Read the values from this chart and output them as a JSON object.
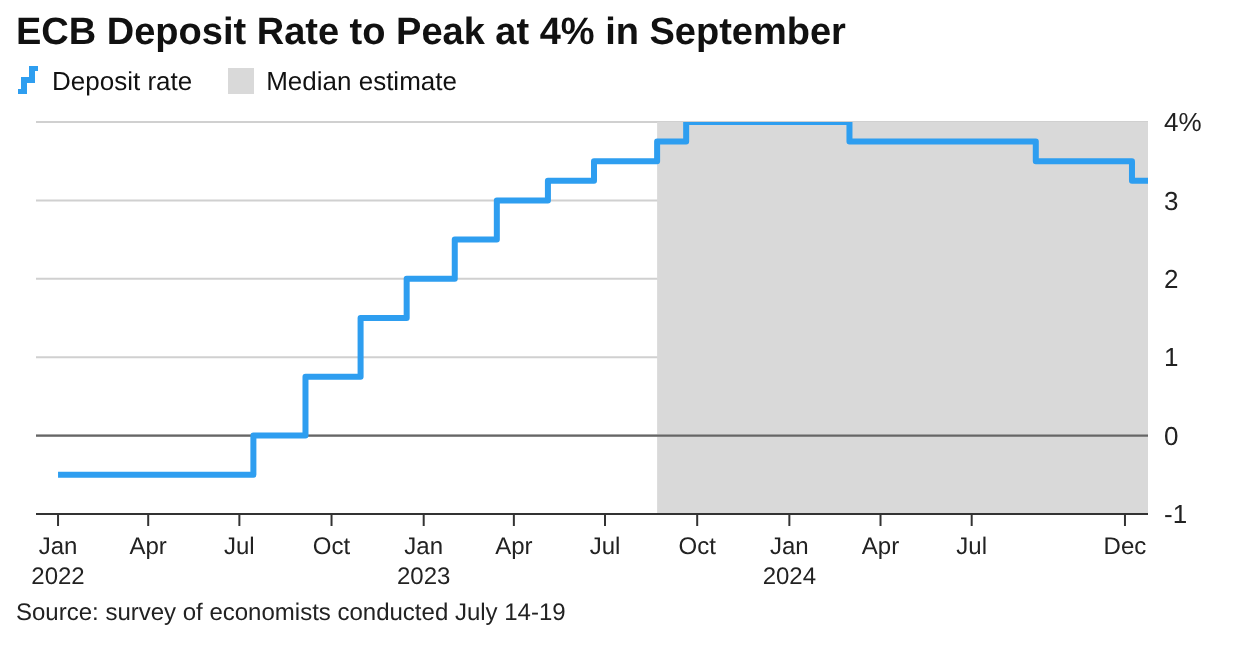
{
  "chart_data": {
    "type": "step",
    "title": "ECB Deposit Rate to Peak at 4% in September",
    "series": [
      {
        "name": "Deposit rate",
        "color": "#2e9ef0",
        "x": [
          "2022-01-01",
          "2022-07-15",
          "2022-09-05",
          "2022-10-30",
          "2022-12-15",
          "2023-02-01",
          "2023-03-15",
          "2023-05-05",
          "2023-06-20",
          "2023-08-22",
          "2023-09-20",
          "2024-03-01",
          "2024-09-03",
          "2024-12-08",
          "2024-12-24"
        ],
        "values": [
          -0.5,
          0,
          0.75,
          1.5,
          2,
          2.5,
          3,
          3.25,
          3.5,
          3.75,
          4,
          3.75,
          3.5,
          3.25,
          3.25
        ]
      }
    ],
    "bands": [
      {
        "axis": "x",
        "from": "2023-08-22",
        "to": "2024-12-24",
        "label": "Median estimate",
        "color": "#d9d9d9"
      }
    ],
    "ref_lines": [
      {
        "axis": "y",
        "value": 0,
        "color": "#666666"
      }
    ],
    "xlim": [
      "2021-12-10",
      "2024-12-24"
    ],
    "xticks": [
      {
        "value": "2022-01-01",
        "label": "Jan\n2022"
      },
      {
        "value": "2022-04-01",
        "label": "Apr"
      },
      {
        "value": "2022-07-01",
        "label": "Jul"
      },
      {
        "value": "2022-10-01",
        "label": "Oct"
      },
      {
        "value": "2023-01-01",
        "label": "Jan\n2023"
      },
      {
        "value": "2023-04-01",
        "label": "Apr"
      },
      {
        "value": "2023-07-01",
        "label": "Jul"
      },
      {
        "value": "2023-10-01",
        "label": "Oct"
      },
      {
        "value": "2024-01-01",
        "label": "Jan\n2024"
      },
      {
        "value": "2024-04-01",
        "label": "Apr"
      },
      {
        "value": "2024-07-01",
        "label": "Jul"
      },
      {
        "value": "2024-12-01",
        "label": "Dec"
      }
    ],
    "ylim": [
      -1,
      4
    ],
    "yticks": [
      -1,
      0,
      1,
      2,
      3,
      {
        "value": 4,
        "label": "4%"
      }
    ],
    "grid": "y",
    "legend": "top left",
    "marker": "none",
    "line_style": "solid",
    "annotations": [
      "Source: survey of economists conducted July 14-19"
    ]
  }
}
